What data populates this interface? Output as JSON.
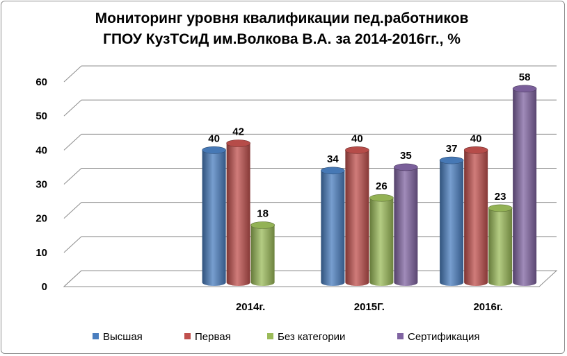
{
  "chart_data": {
    "type": "bar",
    "title_lines": [
      "Мониторинг уровня квалификации пед.работников",
      "ГПОУ КузТСиД им.Волкова В.А. за 2014-2016гг., %"
    ],
    "categories": [
      "",
      "2014г.",
      "2015Г.",
      "2016г."
    ],
    "series": [
      {
        "name": "Высшая",
        "values": [
          null,
          40,
          34,
          37
        ],
        "color": "#4a7ebf"
      },
      {
        "name": "Первая",
        "values": [
          null,
          42,
          40,
          40
        ],
        "color": "#c0504d"
      },
      {
        "name": "Без категории",
        "values": [
          null,
          18,
          26,
          23
        ],
        "color": "#9bbb59"
      },
      {
        "name": "Сертификация",
        "values": [
          null,
          null,
          35,
          58
        ],
        "color": "#8064a2"
      }
    ],
    "y_ticks": [
      0,
      10,
      20,
      30,
      40,
      50,
      60
    ],
    "ylim": [
      0,
      60
    ],
    "grid": true,
    "legend_position": "bottom"
  }
}
